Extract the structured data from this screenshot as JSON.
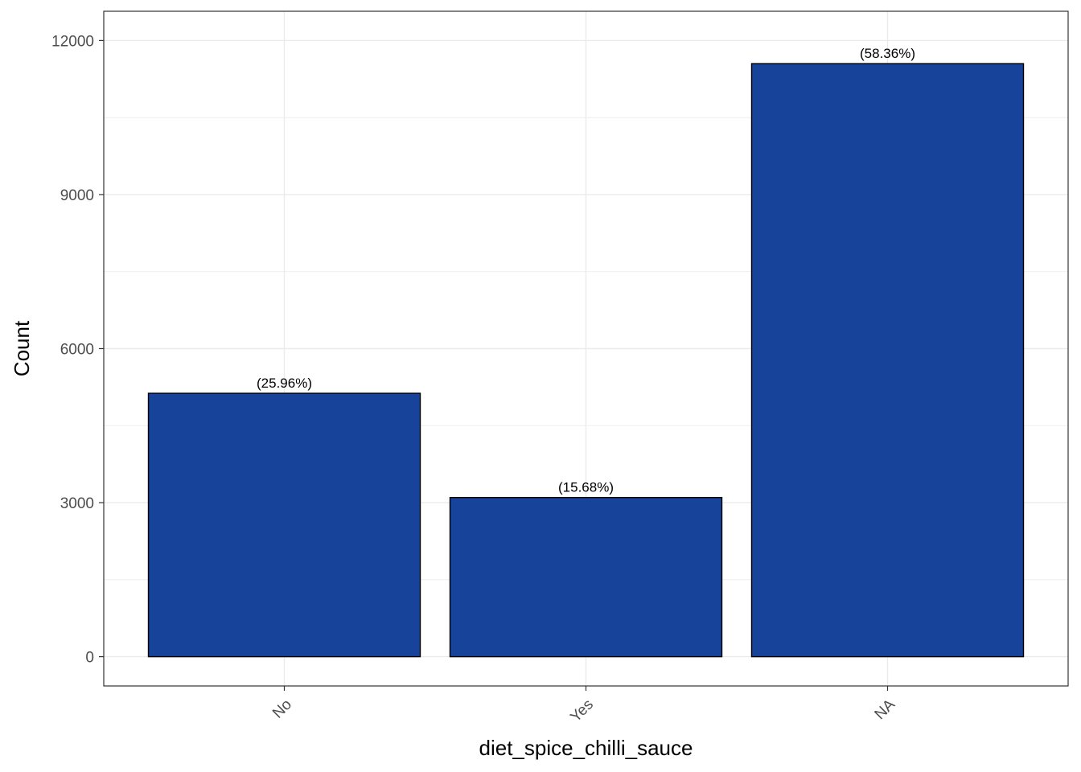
{
  "chart_data": {
    "type": "bar",
    "title": "",
    "xlabel": "diet_spice_chilli_sauce",
    "ylabel": "Count",
    "categories": [
      "No",
      "Yes",
      "NA"
    ],
    "values": [
      5130,
      3100,
      11550
    ],
    "data_labels": [
      "(25.96%)",
      "(15.68%)",
      "(58.36%)"
    ],
    "yticks": [
      0,
      3000,
      6000,
      9000,
      12000
    ],
    "ylim": [
      -570,
      12570
    ],
    "grid": true,
    "legend": "none",
    "bar_color": "#17439A",
    "bar_border_color": "#000000",
    "grid_color": "#ebebeb"
  }
}
